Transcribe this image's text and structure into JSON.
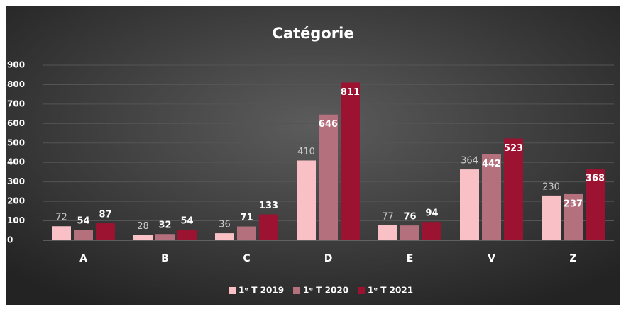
{
  "chart_data": {
    "type": "bar",
    "title": "Catégorie",
    "categories": [
      "A",
      "B",
      "C",
      "D",
      "E",
      "V",
      "Z"
    ],
    "series": [
      {
        "name": "1ᵉ T 2019",
        "color": "#f9c1c6",
        "values": [
          72,
          28,
          36,
          410,
          77,
          364,
          230
        ]
      },
      {
        "name": "1ᵉ T 2020",
        "color": "#b4707d",
        "values": [
          54,
          32,
          71,
          646,
          76,
          442,
          237
        ]
      },
      {
        "name": "1ᵉ T 2021",
        "color": "#9c1231",
        "values": [
          87,
          54,
          133,
          811,
          94,
          523,
          368
        ]
      }
    ],
    "ylim": [
      0,
      900
    ],
    "yticks": [
      0,
      100,
      200,
      300,
      400,
      500,
      600,
      700,
      800,
      900
    ],
    "grid": true,
    "legend": "bottom"
  }
}
